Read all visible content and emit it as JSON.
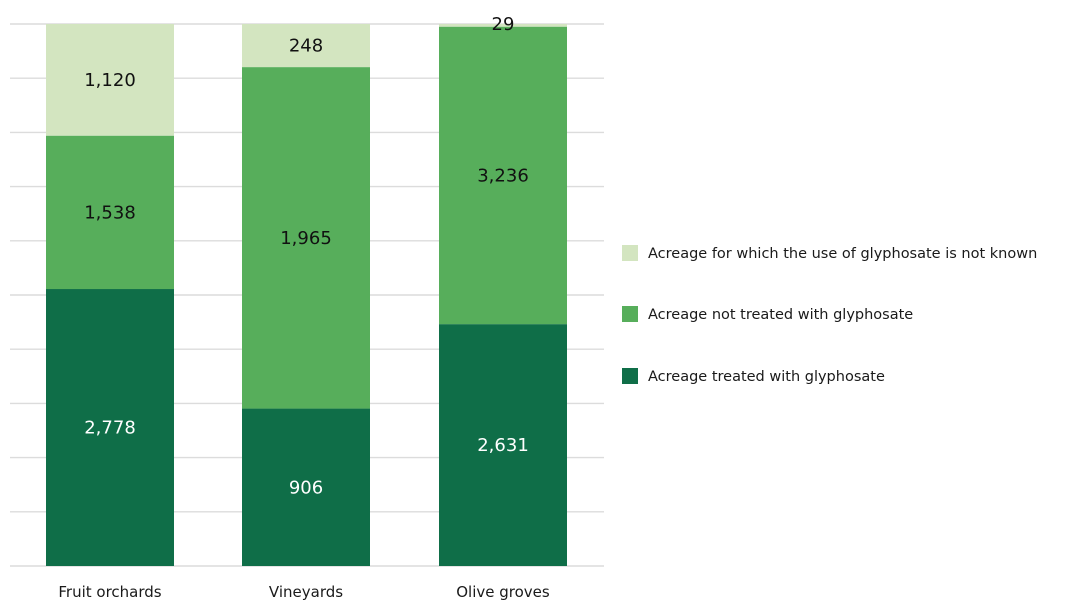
{
  "chart_data": {
    "type": "bar",
    "stacked": true,
    "categories": [
      "Fruit orchards",
      "Vineyards",
      "Olive groves"
    ],
    "series": [
      {
        "name": "Acreage treated with glyphosate",
        "values": [
          2778,
          906,
          2631
        ],
        "color": "#0f6e48",
        "label_color": "#ffffff"
      },
      {
        "name": "Acreage not treated with glyphosate",
        "values": [
          1538,
          1965,
          3236
        ],
        "color": "#57ae5b",
        "label_color": "#111111"
      },
      {
        "name": "Acreage for which the use of glyphosate is not known",
        "values": [
          1120,
          248,
          29
        ],
        "color": "#d3e5c0",
        "label_color": "#111111"
      }
    ],
    "value_labels": [
      [
        "2,778",
        "906",
        "2,631"
      ],
      [
        "1,538",
        "1,965",
        "3,236"
      ],
      [
        "1,120",
        "248",
        "29"
      ]
    ],
    "legend": {
      "position": "right",
      "entries": [
        {
          "label": "Acreage for which the use of glyphosate is not known",
          "color": "#d3e5c0"
        },
        {
          "label": "Acreage not treated with glyphosate",
          "color": "#57ae5b"
        },
        {
          "label": "Acreage treated with glyphosate",
          "color": "#0f6e48"
        }
      ]
    },
    "grid": true,
    "gridline_color": "#dcdcdc",
    "axis_labels_visible": false,
    "title": "",
    "xlabel": "",
    "ylabel": ""
  }
}
